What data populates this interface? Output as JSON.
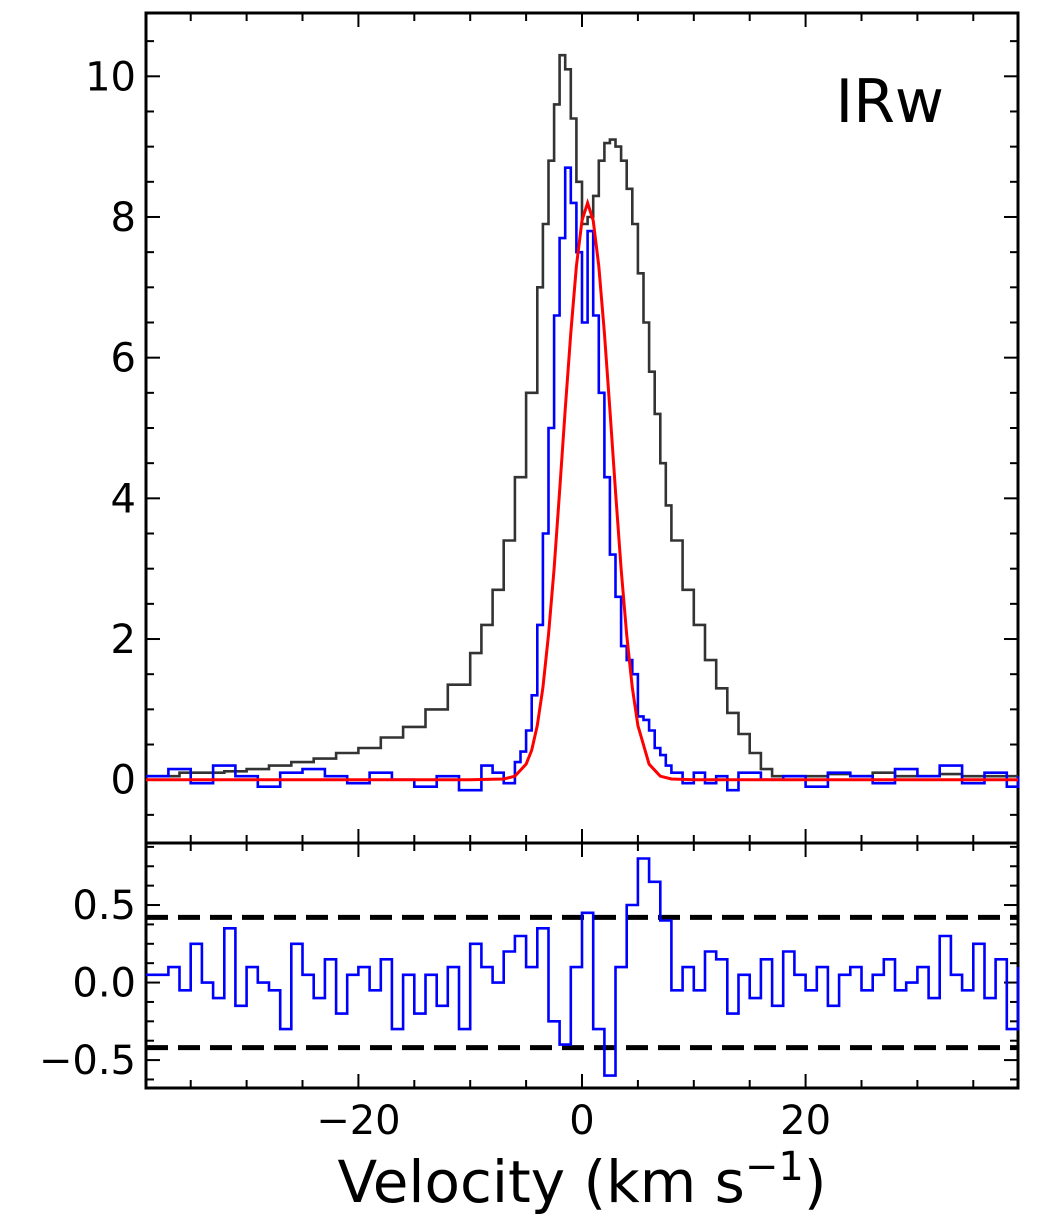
{
  "chart_data": [
    {
      "panel": "main",
      "type": "line",
      "annotation": "IRw",
      "xlabel": "",
      "ylabel": "",
      "xlim": [
        -39,
        39
      ],
      "ylim": [
        -0.9,
        10.9
      ],
      "x_ticks": [
        -20,
        0,
        20
      ],
      "y_ticks": [
        0,
        2,
        4,
        6,
        8,
        10
      ],
      "y_tick_labels": [
        "0",
        "2",
        "4",
        "6",
        "8",
        "10"
      ],
      "tick_direction": "in",
      "minor_ticks": true,
      "grid": false,
      "series": [
        {
          "style": "step",
          "color": "#333333",
          "x": [
            -39,
            -36,
            -34,
            -32,
            -30,
            -28,
            -26,
            -24,
            -22,
            -20,
            -18,
            -16,
            -14,
            -12,
            -10,
            -9,
            -8,
            -7,
            -6,
            -5,
            -4,
            -3.5,
            -3,
            -2.5,
            -2,
            -1.5,
            -1,
            -0.5,
            0,
            0.5,
            1,
            1.5,
            2,
            2.5,
            3,
            3.5,
            4,
            4.5,
            5,
            5.5,
            6,
            6.5,
            7,
            7.5,
            8,
            9,
            10,
            11,
            12,
            13,
            14,
            15,
            16,
            17,
            18,
            20,
            22,
            24,
            26,
            28,
            30,
            32,
            34,
            36,
            39
          ],
          "y": [
            0.05,
            0.1,
            0.1,
            0.12,
            0.15,
            0.2,
            0.25,
            0.3,
            0.38,
            0.45,
            0.6,
            0.75,
            1.0,
            1.35,
            1.8,
            2.2,
            2.7,
            3.4,
            4.3,
            5.5,
            7.0,
            7.9,
            8.8,
            9.6,
            10.3,
            10.1,
            9.4,
            8.5,
            7.9,
            8.0,
            8.3,
            8.8,
            9.05,
            9.1,
            9.0,
            8.8,
            8.4,
            7.9,
            7.2,
            6.5,
            5.8,
            5.2,
            4.5,
            3.9,
            3.4,
            2.7,
            2.2,
            1.7,
            1.3,
            0.95,
            0.65,
            0.38,
            0.15,
            0.05,
            0.05,
            0.05,
            0.08,
            0.05,
            0.1,
            0.05,
            0.05,
            0.08,
            0.05,
            0.05,
            0.05
          ]
        },
        {
          "style": "step",
          "color": "#0000ff",
          "x": [
            -39,
            -37,
            -35,
            -33,
            -31,
            -29,
            -27,
            -25,
            -23,
            -21,
            -19,
            -17,
            -15,
            -13,
            -11,
            -9,
            -8,
            -7,
            -6,
            -5.5,
            -5,
            -4.5,
            -4,
            -3.5,
            -3,
            -2.5,
            -2,
            -1.5,
            -1,
            -0.5,
            0,
            0.5,
            1,
            1.5,
            2,
            2.5,
            3,
            3.5,
            4,
            4.5,
            5,
            5.5,
            6,
            6.5,
            7,
            7.5,
            8,
            9,
            10,
            11,
            12,
            13,
            14,
            16,
            18,
            20,
            22,
            24,
            26,
            28,
            30,
            32,
            34,
            36,
            38,
            39
          ],
          "y": [
            0.05,
            0.15,
            -0.05,
            0.2,
            0.05,
            -0.1,
            0.1,
            0.15,
            0.05,
            -0.05,
            0.1,
            0.0,
            -0.1,
            0.05,
            -0.15,
            0.2,
            0.1,
            -0.05,
            0.25,
            0.4,
            0.7,
            1.2,
            2.2,
            3.5,
            5.0,
            6.6,
            7.7,
            8.7,
            8.2,
            7.5,
            6.5,
            7.8,
            6.6,
            5.5,
            4.3,
            3.2,
            2.6,
            1.9,
            1.7,
            1.5,
            0.9,
            0.85,
            0.7,
            0.45,
            0.35,
            0.2,
            0.1,
            -0.05,
            0.1,
            -0.05,
            0.05,
            -0.15,
            0.1,
            0.0,
            0.05,
            -0.1,
            0.1,
            0.05,
            -0.05,
            0.15,
            0.05,
            0.2,
            -0.05,
            0.1,
            -0.1,
            0.05
          ]
        },
        {
          "style": "line",
          "color": "#ff0000",
          "x": [
            -39,
            -20,
            -10,
            -7,
            -6,
            -5,
            -4.5,
            -4,
            -3.5,
            -3,
            -2.5,
            -2,
            -1.5,
            -1,
            -0.5,
            0,
            0.5,
            1,
            1.5,
            2,
            2.5,
            3,
            3.5,
            4,
            4.5,
            5,
            6,
            7,
            8,
            10,
            20,
            39
          ],
          "y": [
            0,
            0,
            0,
            0.01,
            0.05,
            0.22,
            0.42,
            0.77,
            1.31,
            2.06,
            3.0,
            4.1,
            5.26,
            6.35,
            7.3,
            7.95,
            8.2,
            7.95,
            7.3,
            6.35,
            5.26,
            4.1,
            3.0,
            2.06,
            1.31,
            0.77,
            0.22,
            0.05,
            0.01,
            0,
            0,
            0
          ]
        }
      ]
    },
    {
      "panel": "residual",
      "type": "line",
      "xlabel": "Velocity (km s−1)",
      "xlabel_parts": {
        "main": "Velocity (km s",
        "sup": "−1",
        "close": ")"
      },
      "ylabel": "",
      "xlim": [
        -39,
        39
      ],
      "ylim": [
        -0.68,
        0.9
      ],
      "x_ticks": [
        -20,
        0,
        20
      ],
      "x_tick_labels": [
        "−20",
        "0",
        "20"
      ],
      "y_ticks": [
        0.5,
        0.0,
        -0.5
      ],
      "y_tick_labels": [
        "0.5",
        "0.0",
        "−0.5"
      ],
      "tick_direction": "in",
      "minor_ticks": true,
      "grid": false,
      "hlines": [
        {
          "y": 0.42,
          "color": "#000000",
          "style": "dashed"
        },
        {
          "y": -0.42,
          "color": "#000000",
          "style": "dashed"
        }
      ],
      "series": [
        {
          "style": "step",
          "color": "#0000ff",
          "x": [
            -39,
            -37,
            -36,
            -35,
            -34,
            -33,
            -32,
            -31,
            -30,
            -29,
            -28,
            -27,
            -26,
            -25,
            -24,
            -23,
            -22,
            -21,
            -20,
            -19,
            -18,
            -17,
            -16,
            -15,
            -14,
            -13,
            -12,
            -11,
            -10,
            -9,
            -8,
            -7,
            -6,
            -5,
            -4,
            -3,
            -2,
            -1,
            0,
            1,
            2,
            3,
            4,
            5,
            6,
            7,
            8,
            9,
            10,
            11,
            12,
            13,
            14,
            15,
            16,
            17,
            18,
            19,
            20,
            21,
            22,
            23,
            24,
            25,
            26,
            27,
            28,
            29,
            30,
            31,
            32,
            33,
            34,
            35,
            36,
            37,
            38,
            39
          ],
          "y": [
            0.05,
            0.1,
            -0.05,
            0.25,
            0.0,
            -0.1,
            0.35,
            -0.15,
            0.1,
            0.0,
            -0.05,
            -0.3,
            0.25,
            0.05,
            -0.1,
            0.15,
            -0.2,
            0.05,
            0.1,
            -0.05,
            0.15,
            -0.3,
            0.05,
            -0.2,
            0.05,
            -0.15,
            0.1,
            -0.3,
            0.25,
            0.1,
            0.0,
            0.2,
            0.3,
            0.1,
            0.35,
            -0.25,
            -0.4,
            0.1,
            0.45,
            -0.3,
            -0.6,
            0.1,
            0.5,
            0.8,
            0.65,
            0.4,
            -0.05,
            0.1,
            -0.05,
            0.2,
            0.15,
            -0.2,
            0.05,
            -0.1,
            0.15,
            -0.15,
            0.2,
            0.05,
            -0.05,
            0.1,
            -0.15,
            0.05,
            0.1,
            -0.05,
            0.05,
            0.15,
            -0.05,
            0.0,
            0.1,
            -0.1,
            0.3,
            0.05,
            -0.05,
            0.25,
            -0.1,
            0.15,
            -0.3,
            0.1
          ]
        }
      ]
    }
  ]
}
